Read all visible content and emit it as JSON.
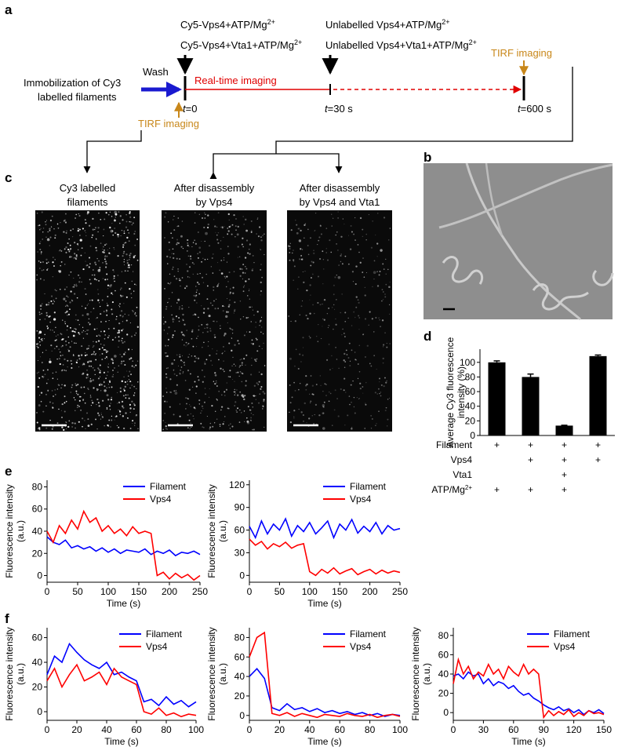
{
  "scheme": {
    "label": "a",
    "start_text": [
      "Immobilization of Cy3",
      "labelled filaments"
    ],
    "wash": "Wash",
    "conditions_t0": [
      {
        "main": "Cy5-Vps4+ATP/Mg",
        "sup": "2+"
      },
      {
        "main": "Cy5-Vps4+Vta1+ATP/Mg",
        "sup": "2+"
      }
    ],
    "conditions_t30": [
      {
        "main": "Unlabelled Vps4+ATP/Mg",
        "sup": "2+"
      },
      {
        "main": "Unlabelled Vps4+Vta1+ATP/Mg",
        "sup": "2+"
      }
    ],
    "realtime": "Real-time imaging",
    "tirf": [
      "TIRF imaging",
      "TIRF imaging"
    ],
    "times": [
      {
        "var": "t",
        "rest": "=0"
      },
      {
        "var": "t",
        "rest": "=30 s"
      },
      {
        "var": "t",
        "rest": "=600 s"
      }
    ]
  },
  "images": {
    "label": "c",
    "captions": [
      [
        "Cy3 labelled",
        "filaments"
      ],
      [
        "After disassembly",
        "by Vps4"
      ],
      [
        "After disassembly",
        "by Vps4 and Vta1"
      ]
    ]
  },
  "em": {
    "label": "b"
  },
  "chart_data": [
    {
      "type": "bar",
      "panel_label": "d",
      "values": [
        100,
        80,
        13.5,
        108.5
      ],
      "errors": [
        2,
        4,
        0.5,
        1.5
      ],
      "color": "#000000",
      "ylim": [
        0,
        118
      ],
      "yticks": [
        0,
        20,
        40,
        60,
        80,
        100
      ],
      "ylabel": [
        "Average Cy3 fluorescence",
        "intensity (%)"
      ],
      "conditions": [
        {
          "label": "Filament",
          "marks": [
            "+",
            "+",
            "+",
            "+"
          ]
        },
        {
          "label": "Vps4",
          "marks": [
            null,
            "+",
            "+",
            "+"
          ]
        },
        {
          "label": "Vta1",
          "marks": [
            null,
            null,
            "+",
            null
          ]
        },
        {
          "label": "ATP/Mg",
          "label_sup": "2+",
          "marks": [
            "+",
            "+",
            "+",
            null
          ]
        }
      ]
    },
    {
      "type": "line",
      "panel_label": "e",
      "x": [
        0,
        10,
        20,
        30,
        40,
        50,
        60,
        70,
        80,
        90,
        100,
        110,
        120,
        130,
        140,
        150,
        160,
        170,
        180,
        190,
        200,
        210,
        220,
        230,
        240,
        250
      ],
      "xlim": [
        0,
        250
      ],
      "xticks": [
        0,
        50,
        100,
        150,
        200,
        250
      ],
      "ylim": [
        -6,
        86
      ],
      "yticks": [
        0,
        20,
        40,
        60,
        80
      ],
      "xlabel": "Time (s)",
      "ylabel": [
        "Fluorescence intensity",
        "(a.u.)"
      ],
      "series": [
        {
          "name": "Filament",
          "color": "#0000ff",
          "values": [
            35,
            30,
            28,
            32,
            25,
            27,
            24,
            26,
            22,
            25,
            21,
            24,
            20,
            23,
            22,
            21,
            24,
            19,
            22,
            20,
            23,
            18,
            21,
            20,
            22,
            19
          ]
        },
        {
          "name": "Vps4",
          "color": "#ff0000",
          "values": [
            40,
            30,
            45,
            38,
            50,
            42,
            58,
            48,
            52,
            40,
            45,
            38,
            42,
            36,
            44,
            38,
            40,
            38,
            0,
            3,
            -3,
            2,
            -2,
            1,
            -4,
            0
          ]
        }
      ]
    },
    {
      "type": "line",
      "x": [
        0,
        10,
        20,
        30,
        40,
        50,
        60,
        70,
        80,
        90,
        100,
        110,
        120,
        130,
        140,
        150,
        160,
        170,
        180,
        190,
        200,
        210,
        220,
        230,
        240,
        250
      ],
      "xlim": [
        0,
        250
      ],
      "xticks": [
        0,
        50,
        100,
        150,
        200,
        250
      ],
      "ylim": [
        -9,
        126
      ],
      "yticks": [
        0,
        30,
        60,
        90,
        120
      ],
      "xlabel": "Time (s)",
      "ylabel": [
        "Fluorescence intensity",
        "(a.u.)"
      ],
      "series": [
        {
          "name": "Filament",
          "color": "#0000ff",
          "values": [
            65,
            50,
            72,
            55,
            68,
            60,
            75,
            52,
            66,
            58,
            70,
            55,
            63,
            72,
            50,
            68,
            60,
            74,
            56,
            65,
            58,
            70,
            55,
            66,
            60,
            62
          ]
        },
        {
          "name": "Vps4",
          "color": "#ff0000",
          "values": [
            48,
            40,
            45,
            35,
            42,
            38,
            44,
            36,
            40,
            42,
            5,
            0,
            8,
            3,
            10,
            2,
            6,
            9,
            1,
            5,
            8,
            2,
            7,
            3,
            6,
            4
          ]
        }
      ]
    },
    {
      "type": "line",
      "panel_label": "f",
      "x": [
        0,
        5,
        10,
        15,
        20,
        25,
        30,
        35,
        40,
        45,
        50,
        55,
        60,
        65,
        70,
        75,
        80,
        85,
        90,
        95,
        100
      ],
      "xlim": [
        0,
        100
      ],
      "xticks": [
        0,
        20,
        40,
        60,
        80,
        100
      ],
      "ylim": [
        -7,
        68
      ],
      "yticks": [
        0,
        20,
        40,
        60
      ],
      "xlabel": "Time (s)",
      "ylabel": [
        "Fluorescence intensity",
        "(a.u.)"
      ],
      "series": [
        {
          "name": "Filament",
          "color": "#0000ff",
          "values": [
            30,
            45,
            40,
            55,
            48,
            42,
            38,
            35,
            40,
            30,
            32,
            28,
            25,
            8,
            10,
            5,
            12,
            6,
            9,
            4,
            8
          ]
        },
        {
          "name": "Vps4",
          "color": "#ff0000",
          "values": [
            25,
            35,
            20,
            30,
            38,
            25,
            28,
            32,
            22,
            35,
            28,
            25,
            22,
            0,
            -2,
            3,
            -3,
            -1,
            -4,
            -2,
            -3
          ]
        }
      ]
    },
    {
      "type": "line",
      "x": [
        0,
        5,
        10,
        15,
        20,
        25,
        30,
        35,
        40,
        45,
        50,
        55,
        60,
        65,
        70,
        75,
        80,
        85,
        90,
        95,
        100
      ],
      "xlim": [
        0,
        100
      ],
      "xticks": [
        0,
        20,
        40,
        60,
        80,
        100
      ],
      "ylim": [
        -5,
        90
      ],
      "yticks": [
        0,
        20,
        40,
        60,
        80
      ],
      "xlabel": "Time (s)",
      "ylabel": [
        "Fluorescence intensity",
        "(a.u.)"
      ],
      "series": [
        {
          "name": "Filament",
          "color": "#0000ff",
          "values": [
            40,
            48,
            38,
            8,
            5,
            12,
            6,
            8,
            4,
            7,
            3,
            5,
            2,
            4,
            1,
            3,
            0,
            2,
            -1,
            1,
            0
          ]
        },
        {
          "name": "Vps4",
          "color": "#ff0000",
          "values": [
            60,
            80,
            85,
            2,
            0,
            3,
            -1,
            2,
            0,
            -2,
            1,
            0,
            -1,
            2,
            0,
            -1,
            1,
            -2,
            0,
            1,
            -1
          ]
        }
      ]
    },
    {
      "type": "line",
      "x": [
        0,
        5,
        10,
        15,
        20,
        25,
        30,
        35,
        40,
        45,
        50,
        55,
        60,
        65,
        70,
        75,
        80,
        85,
        90,
        95,
        100,
        105,
        110,
        115,
        120,
        125,
        130,
        135,
        140,
        145,
        150
      ],
      "xlim": [
        0,
        150
      ],
      "xticks": [
        0,
        30,
        60,
        90,
        120,
        150
      ],
      "ylim": [
        -8,
        88
      ],
      "yticks": [
        0,
        20,
        40,
        60,
        80
      ],
      "xlabel": "Time (s)",
      "ylabel": [
        "Fluorescence intensity",
        "(a.u.)"
      ],
      "series": [
        {
          "name": "Filament",
          "color": "#0000ff",
          "values": [
            38,
            40,
            35,
            42,
            38,
            40,
            30,
            35,
            28,
            32,
            30,
            25,
            28,
            22,
            18,
            20,
            15,
            12,
            8,
            5,
            3,
            6,
            2,
            4,
            0,
            3,
            -2,
            2,
            0,
            3,
            -1
          ]
        },
        {
          "name": "Vps4",
          "color": "#ff0000",
          "values": [
            30,
            55,
            40,
            48,
            35,
            42,
            38,
            50,
            40,
            45,
            35,
            48,
            42,
            38,
            50,
            40,
            45,
            40,
            -5,
            2,
            -3,
            1,
            -2,
            3,
            -4,
            0,
            -3,
            2,
            -1,
            0,
            -2
          ]
        }
      ]
    }
  ]
}
